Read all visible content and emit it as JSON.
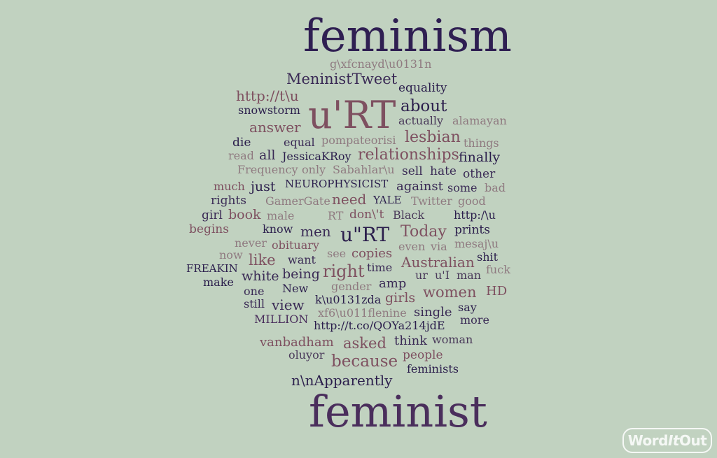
{
  "palette": {
    "background": "#c1d2c0",
    "dark": "#2b1e4c",
    "mid": "#4a2e5c",
    "rose": "#7e5060",
    "muted": "#8f7a80"
  },
  "logo": {
    "part1": "Word",
    "part2": "It",
    "part3": "Out"
  },
  "words": [
    {
      "text": "feminism",
      "color": "#2f1f52"
    },
    {
      "text": "g\\xfcnayd\\u0131n",
      "color": "#8f7a80"
    },
    {
      "text": "MeninistTweet",
      "color": "#3a2a55"
    },
    {
      "text": "http://t\\u",
      "color": "#7e5060"
    },
    {
      "text": "u'RT",
      "color": "#7e5060"
    },
    {
      "text": "equality",
      "color": "#2b1e4c"
    },
    {
      "text": "snowstorm",
      "color": "#2b1e4c"
    },
    {
      "text": "about",
      "color": "#2b1e4c"
    },
    {
      "text": "actually",
      "color": "#4a3a5a"
    },
    {
      "text": "alamayan",
      "color": "#8f7a80"
    },
    {
      "text": "answer",
      "color": "#7e5060"
    },
    {
      "text": "lesbian",
      "color": "#7e5060"
    },
    {
      "text": "die",
      "color": "#2b1e4c"
    },
    {
      "text": "equal",
      "color": "#3a2a55"
    },
    {
      "text": "pompateorisi",
      "color": "#8f7a80"
    },
    {
      "text": "things",
      "color": "#8f7a80"
    },
    {
      "text": "read",
      "color": "#8f7a80"
    },
    {
      "text": "all",
      "color": "#3a2a55"
    },
    {
      "text": "JessicaKRoy",
      "color": "#2b1e4c"
    },
    {
      "text": "relationships",
      "color": "#7e5060"
    },
    {
      "text": "finally",
      "color": "#2b1e4c"
    },
    {
      "text": "Frequency",
      "color": "#8f7a80"
    },
    {
      "text": "only",
      "color": "#8f7a80"
    },
    {
      "text": "Sabahlar\\u",
      "color": "#8f7a80"
    },
    {
      "text": "sell",
      "color": "#3a2a55"
    },
    {
      "text": "hate",
      "color": "#3a2a55"
    },
    {
      "text": "other",
      "color": "#3a2a55"
    },
    {
      "text": "much",
      "color": "#7e5060"
    },
    {
      "text": "just",
      "color": "#2b1e4c"
    },
    {
      "text": "NEUROPHYSICIST",
      "color": "#2b1e4c"
    },
    {
      "text": "against",
      "color": "#3a2a55"
    },
    {
      "text": "some",
      "color": "#3a2a55"
    },
    {
      "text": "bad",
      "color": "#8f7a80"
    },
    {
      "text": "rights",
      "color": "#3a2a55"
    },
    {
      "text": "GamerGate",
      "color": "#8f7a80"
    },
    {
      "text": "need",
      "color": "#7e5060"
    },
    {
      "text": "YALE",
      "color": "#2b1e4c"
    },
    {
      "text": "Twitter",
      "color": "#8f7a80"
    },
    {
      "text": "good",
      "color": "#8f7a80"
    },
    {
      "text": "girl",
      "color": "#3a2a55"
    },
    {
      "text": "book",
      "color": "#7e5060"
    },
    {
      "text": "male",
      "color": "#8f7a80"
    },
    {
      "text": "RT",
      "color": "#8f7a80"
    },
    {
      "text": "don\\'t",
      "color": "#7e5060"
    },
    {
      "text": "Black",
      "color": "#4a3a5a"
    },
    {
      "text": "http:/\\u",
      "color": "#2b1e4c"
    },
    {
      "text": "begins",
      "color": "#7e5060"
    },
    {
      "text": "know",
      "color": "#2b1e4c"
    },
    {
      "text": "men",
      "color": "#3a2a55"
    },
    {
      "text": "u\"RT",
      "color": "#2b1e4c"
    },
    {
      "text": "Today",
      "color": "#7e5060"
    },
    {
      "text": "prints",
      "color": "#2b1e4c"
    },
    {
      "text": "never",
      "color": "#8f7a80"
    },
    {
      "text": "obituary",
      "color": "#7e5060"
    },
    {
      "text": "even",
      "color": "#8f7a80"
    },
    {
      "text": "via",
      "color": "#8f7a80"
    },
    {
      "text": "mesaj\\u",
      "color": "#8f7a80"
    },
    {
      "text": "now",
      "color": "#8f7a80"
    },
    {
      "text": "like",
      "color": "#7e5060"
    },
    {
      "text": "want",
      "color": "#3a2a55"
    },
    {
      "text": "see",
      "color": "#8f7a80"
    },
    {
      "text": "copies",
      "color": "#7e5060"
    },
    {
      "text": "Australian",
      "color": "#7e5060"
    },
    {
      "text": "shit",
      "color": "#2b1e4c"
    },
    {
      "text": "FREAKIN",
      "color": "#2b1e4c"
    },
    {
      "text": "white",
      "color": "#3a2a55"
    },
    {
      "text": "being",
      "color": "#3a2a55"
    },
    {
      "text": "right",
      "color": "#7e5060"
    },
    {
      "text": "time",
      "color": "#3a2a55"
    },
    {
      "text": "fuck",
      "color": "#8f7a80"
    },
    {
      "text": "make",
      "color": "#2b1e4c"
    },
    {
      "text": "ur",
      "color": "#4a3a5a"
    },
    {
      "text": "u'I",
      "color": "#4a3a5a"
    },
    {
      "text": "man",
      "color": "#4a3a5a"
    },
    {
      "text": "amp",
      "color": "#3a2a55"
    },
    {
      "text": "one",
      "color": "#3a2a55"
    },
    {
      "text": "New",
      "color": "#2b1e4c"
    },
    {
      "text": "gender",
      "color": "#8f7a80"
    },
    {
      "text": "women",
      "color": "#7e5060"
    },
    {
      "text": "HD",
      "color": "#7e5060"
    },
    {
      "text": "still",
      "color": "#3a2a55"
    },
    {
      "text": "view",
      "color": "#3a2a55"
    },
    {
      "text": "k\\u0131zda",
      "color": "#2b1e4c"
    },
    {
      "text": "girls",
      "color": "#7e5060"
    },
    {
      "text": "say",
      "color": "#2b1e4c"
    },
    {
      "text": "xf6\\u011flenine",
      "color": "#8f7a80"
    },
    {
      "text": "single",
      "color": "#3a2a55"
    },
    {
      "text": "MILLION",
      "color": "#4a2e5c"
    },
    {
      "text": "more",
      "color": "#3a2a55"
    },
    {
      "text": "http://t.co/QOYa214jdE",
      "color": "#2b1e4c"
    },
    {
      "text": "vanbadham",
      "color": "#7e5060"
    },
    {
      "text": "asked",
      "color": "#7e5060"
    },
    {
      "text": "think",
      "color": "#3a2a55"
    },
    {
      "text": "woman",
      "color": "#4a3a5a"
    },
    {
      "text": "oluyor",
      "color": "#4a3a5a"
    },
    {
      "text": "because",
      "color": "#7e5060"
    },
    {
      "text": "people",
      "color": "#7e5060"
    },
    {
      "text": "feminists",
      "color": "#2b1e4c"
    },
    {
      "text": "n\\nApparently",
      "color": "#2b1e4c"
    },
    {
      "text": "feminist",
      "color": "#4a2e5c"
    }
  ]
}
